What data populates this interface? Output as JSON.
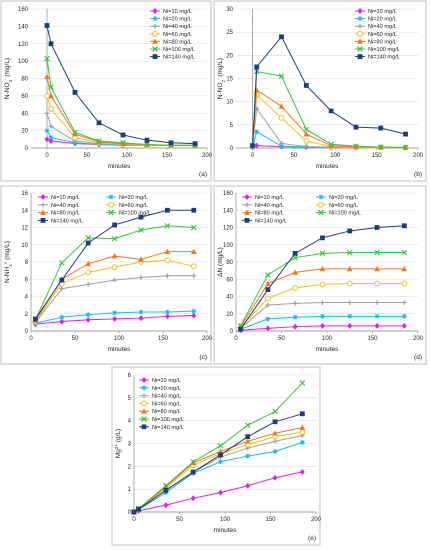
{
  "figure": {
    "colors": {
      "Ni=10 mg/L": "#e020e0",
      "Ni=20 mg/L": "#20b8e8",
      "Ni=40 mg/L": "#a0a0a0",
      "Ni=60 mg/L": "#f0c020",
      "Ni=80 mg/L": "#f07820",
      "Ni=100 mg/L": "#40c040",
      "Ni=140 mg/L": "#1f3d7a"
    },
    "markers": {
      "Ni=10 mg/L": "diamond",
      "Ni=20 mg/L": "star",
      "Ni=40 mg/L": "plus",
      "Ni=60 mg/L": "circle",
      "Ni=80 mg/L": "triangle",
      "Ni=100 mg/L": "x",
      "Ni=140 mg/L": "square"
    }
  },
  "chart_data": [
    {
      "panel": "(a)",
      "type": "line",
      "ylabel": "N-NO3- (mg/L)",
      "xlabel": "minutes",
      "xlim": [
        -20,
        200
      ],
      "xticks": [
        0,
        50,
        100,
        150,
        200
      ],
      "ylim": [
        0,
        160
      ],
      "yticks": [
        0,
        20,
        40,
        60,
        80,
        100,
        120,
        140,
        160
      ],
      "grid": "horizontal",
      "legend": "top-right, 1 column",
      "x": [
        0,
        5,
        35,
        65,
        95,
        125,
        155,
        185
      ],
      "series": [
        {
          "name": "Ni=10 mg/L",
          "values": [
            10,
            8,
            5,
            4,
            3,
            3,
            3,
            3
          ]
        },
        {
          "name": "Ni=20 mg/L",
          "values": [
            20,
            12,
            6,
            4,
            3,
            3,
            3,
            3
          ]
        },
        {
          "name": "Ni=40 mg/L",
          "values": [
            40,
            25,
            8,
            5,
            4,
            3,
            3,
            3
          ]
        },
        {
          "name": "Ni=60 mg/L",
          "values": [
            60,
            45,
            12,
            6,
            4,
            3,
            3,
            3
          ]
        },
        {
          "name": "Ni=80 mg/L",
          "values": [
            82,
            60,
            16,
            7,
            5,
            4,
            3,
            3
          ]
        },
        {
          "name": "Ni=100 mg/L",
          "values": [
            103,
            70,
            18,
            8,
            6,
            4,
            3,
            3
          ]
        },
        {
          "name": "Ni=140 mg/L",
          "values": [
            141,
            120,
            64,
            29,
            15,
            9,
            6,
            5
          ]
        }
      ]
    },
    {
      "panel": "(b)",
      "type": "line",
      "ylabel": "N-NO2- (mg/L)",
      "xlabel": "minutes",
      "xlim": [
        -20,
        200
      ],
      "xticks": [
        0,
        50,
        100,
        150,
        200
      ],
      "ylim": [
        0,
        30
      ],
      "yticks": [
        0,
        5,
        10,
        15,
        20,
        25,
        30
      ],
      "grid": "horizontal",
      "legend": "top-right, 1 column",
      "x": [
        0,
        5,
        35,
        65,
        95,
        125,
        155,
        185
      ],
      "series": [
        {
          "name": "Ni=10 mg/L",
          "values": [
            0.1,
            0.5,
            0.3,
            0.2,
            0.1,
            0.1,
            0.1,
            0.1
          ]
        },
        {
          "name": "Ni=20 mg/L",
          "values": [
            0.2,
            3.5,
            0.4,
            0.2,
            0.1,
            0.1,
            0.1,
            0.1
          ]
        },
        {
          "name": "Ni=40 mg/L",
          "values": [
            0.3,
            8.5,
            1.0,
            0.3,
            0.2,
            0.1,
            0.1,
            0.1
          ]
        },
        {
          "name": "Ni=60 mg/L",
          "values": [
            0.4,
            11.5,
            6.5,
            1.5,
            0.3,
            0.2,
            0.1,
            0.1
          ]
        },
        {
          "name": "Ni=80 mg/L",
          "values": [
            0.4,
            12.5,
            9.0,
            3.0,
            0.5,
            0.3,
            0.2,
            0.1
          ]
        },
        {
          "name": "Ni=100 mg/L",
          "values": [
            0.4,
            16.5,
            15.5,
            4.0,
            0.8,
            0.4,
            0.2,
            0.1
          ]
        },
        {
          "name": "Ni=140 mg/L",
          "values": [
            0.5,
            17.5,
            24.0,
            13.5,
            8.0,
            4.5,
            4.3,
            3.0
          ]
        }
      ]
    },
    {
      "panel": "(c)",
      "type": "line",
      "ylabel": "N-NH4+ (mg/L)",
      "xlabel": "minutes",
      "xlim": [
        0,
        200
      ],
      "xticks": [
        0,
        50,
        100,
        150,
        200
      ],
      "ylim": [
        0,
        16
      ],
      "yticks": [
        0,
        2,
        4,
        6,
        8,
        10,
        12,
        14,
        16
      ],
      "grid": "horizontal",
      "legend": "top, 2 columns",
      "x": [
        5,
        35,
        65,
        95,
        125,
        155,
        185
      ],
      "series": [
        {
          "name": "Ni=10 mg/L",
          "values": [
            0.8,
            1.1,
            1.3,
            1.4,
            1.5,
            1.7,
            1.8
          ]
        },
        {
          "name": "Ni=20 mg/L",
          "values": [
            0.9,
            1.6,
            1.9,
            2.1,
            2.2,
            2.2,
            2.3
          ]
        },
        {
          "name": "Ni=40 mg/L",
          "values": [
            1.0,
            4.9,
            5.4,
            5.9,
            6.2,
            6.4,
            6.4
          ]
        },
        {
          "name": "Ni=60 mg/L",
          "values": [
            1.1,
            5.5,
            6.8,
            7.4,
            8.0,
            8.2,
            7.5
          ]
        },
        {
          "name": "Ni=80 mg/L",
          "values": [
            1.2,
            6.0,
            7.8,
            8.7,
            8.3,
            9.2,
            9.2
          ]
        },
        {
          "name": "Ni=100 mg/L",
          "values": [
            1.3,
            7.9,
            10.8,
            10.7,
            11.7,
            12.2,
            12.0
          ]
        },
        {
          "name": "Ni=140 mg/L",
          "values": [
            1.4,
            5.9,
            10.2,
            12.3,
            13.2,
            14.0,
            14.0
          ]
        }
      ]
    },
    {
      "panel": "(d)",
      "type": "line",
      "ylabel": "ΔN (mg/L)",
      "xlabel": "minutes",
      "xlim": [
        0,
        200
      ],
      "xticks": [
        0,
        50,
        100,
        150,
        200
      ],
      "ylim": [
        0,
        160
      ],
      "yticks": [
        0,
        20,
        40,
        60,
        80,
        100,
        120,
        140,
        160
      ],
      "grid": "horizontal",
      "legend": "top, 2 columns",
      "x": [
        5,
        35,
        65,
        95,
        125,
        155,
        185
      ],
      "series": [
        {
          "name": "Ni=10 mg/L",
          "values": [
            1,
            3,
            5,
            6,
            6,
            6,
            6
          ]
        },
        {
          "name": "Ni=20 mg/L",
          "values": [
            2,
            14,
            16,
            17,
            17,
            17,
            17
          ]
        },
        {
          "name": "Ni=40 mg/L",
          "values": [
            3,
            30,
            32,
            33,
            33,
            33,
            33
          ]
        },
        {
          "name": "Ni=60 mg/L",
          "values": [
            4,
            38,
            50,
            54,
            55,
            55,
            55
          ]
        },
        {
          "name": "Ni=80 mg/L",
          "values": [
            5,
            55,
            68,
            72,
            72,
            72,
            72
          ]
        },
        {
          "name": "Ni=100 mg/L",
          "values": [
            6,
            65,
            85,
            90,
            91,
            91,
            91
          ]
        },
        {
          "name": "Ni=140 mg/L",
          "values": [
            2,
            48,
            90,
            108,
            116,
            120,
            122
          ]
        }
      ]
    },
    {
      "panel": "(e)",
      "type": "line",
      "ylabel": "Mg2+ (g/L)",
      "xlabel": "minutes",
      "xlim": [
        0,
        200
      ],
      "xticks": [
        0,
        50,
        100,
        150,
        200
      ],
      "ylim": [
        0,
        6
      ],
      "yticks": [
        0,
        1,
        2,
        3,
        4,
        5,
        6
      ],
      "grid": "horizontal",
      "legend": "top-left, 1 column",
      "x": [
        0,
        5,
        35,
        65,
        95,
        125,
        155,
        185
      ],
      "series": [
        {
          "name": "Ni=10 mg/L",
          "values": [
            0,
            0.05,
            0.3,
            0.6,
            0.85,
            1.15,
            1.5,
            1.75
          ]
        },
        {
          "name": "Ni=20 mg/L",
          "values": [
            0,
            0.1,
            0.85,
            1.7,
            2.2,
            2.45,
            2.65,
            3.05
          ]
        },
        {
          "name": "Ni=40 mg/L",
          "values": [
            0,
            0.12,
            0.95,
            1.75,
            2.4,
            2.8,
            3.1,
            3.35
          ]
        },
        {
          "name": "Ni=60 mg/L",
          "values": [
            0,
            0.13,
            1.05,
            2.05,
            2.55,
            2.95,
            3.3,
            3.5
          ]
        },
        {
          "name": "Ni=80 mg/L",
          "values": [
            0,
            0.14,
            1.1,
            2.15,
            2.65,
            3.1,
            3.45,
            3.7
          ]
        },
        {
          "name": "Ni=100 mg/L",
          "values": [
            0,
            0.15,
            1.15,
            2.2,
            2.9,
            3.8,
            4.4,
            5.65
          ]
        },
        {
          "name": "Ni=140 mg/L",
          "values": [
            0,
            0.12,
            0.95,
            1.75,
            2.5,
            3.3,
            3.95,
            4.3
          ]
        }
      ]
    }
  ]
}
